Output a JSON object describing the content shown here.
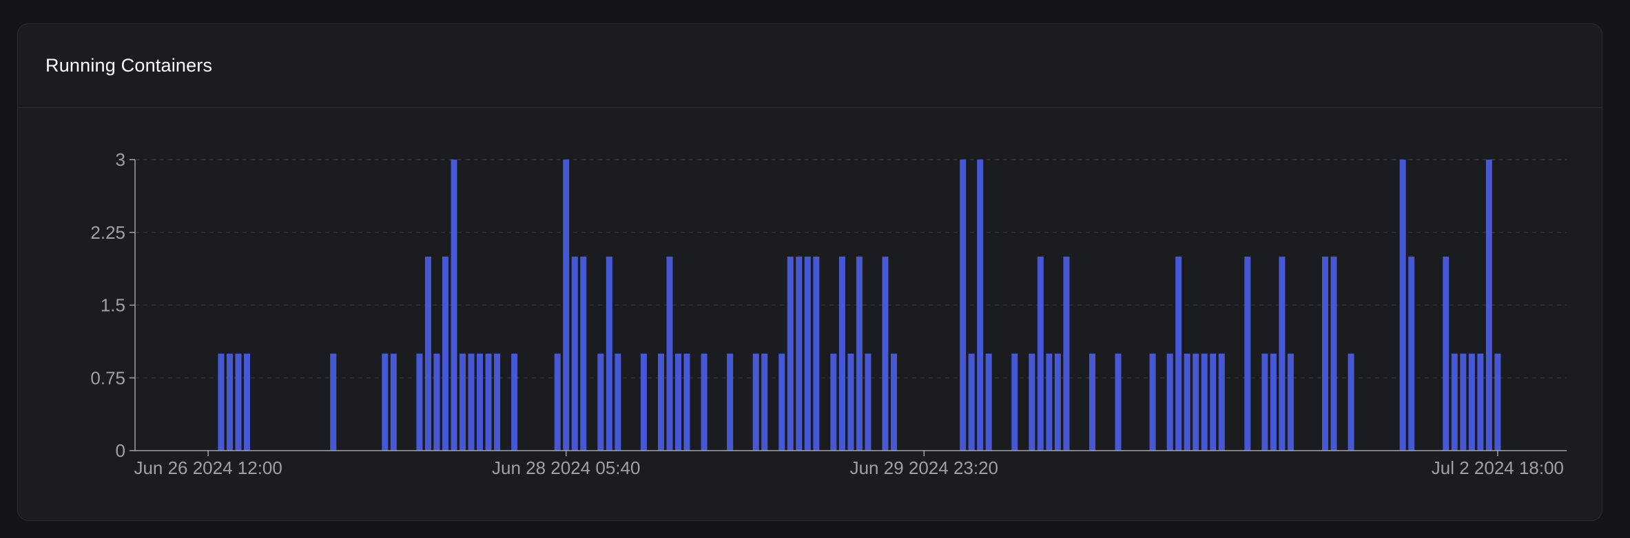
{
  "card": {
    "title": "Running Containers"
  },
  "colors": {
    "bar": "#4658d3",
    "axis": "#9ea1a8",
    "grid": "#2e3036",
    "background": "#1b1c20"
  },
  "chart_data": {
    "type": "bar",
    "title": "Running Containers",
    "xlabel": "",
    "ylabel": "",
    "ylim": [
      0,
      3
    ],
    "yticks": [
      {
        "value": 0,
        "label": "0"
      },
      {
        "value": 0.75,
        "label": "0.75"
      },
      {
        "value": 1.5,
        "label": "1.5"
      },
      {
        "value": 2.25,
        "label": "2.25"
      },
      {
        "value": 3,
        "label": "3"
      }
    ],
    "xticks": [
      {
        "label": "Jun 26 2024 12:00",
        "slot": 8
      },
      {
        "label": "Jun 28 2024 05:40",
        "slot": 49.5
      },
      {
        "label": "Jun 29 2024 23:20",
        "slot": 91
      },
      {
        "label": "Jul 2 2024 18:00",
        "slot": 157.5
      }
    ],
    "grid": true,
    "legend": "none",
    "bin_count": 166,
    "bins": [
      [
        9,
        1
      ],
      [
        10,
        1
      ],
      [
        11,
        1
      ],
      [
        12,
        1
      ],
      [
        22,
        1
      ],
      [
        28,
        1
      ],
      [
        29,
        1
      ],
      [
        32,
        1
      ],
      [
        33,
        2
      ],
      [
        34,
        1
      ],
      [
        35,
        2
      ],
      [
        36,
        3
      ],
      [
        37,
        1
      ],
      [
        38,
        1
      ],
      [
        39,
        1
      ],
      [
        40,
        1
      ],
      [
        41,
        1
      ],
      [
        43,
        1
      ],
      [
        48,
        1
      ],
      [
        49,
        3
      ],
      [
        50,
        2
      ],
      [
        51,
        2
      ],
      [
        53,
        1
      ],
      [
        54,
        2
      ],
      [
        55,
        1
      ],
      [
        58,
        1
      ],
      [
        60,
        1
      ],
      [
        61,
        2
      ],
      [
        62,
        1
      ],
      [
        63,
        1
      ],
      [
        65,
        1
      ],
      [
        68,
        1
      ],
      [
        71,
        1
      ],
      [
        72,
        1
      ],
      [
        74,
        1
      ],
      [
        75,
        2
      ],
      [
        76,
        2
      ],
      [
        77,
        2
      ],
      [
        78,
        2
      ],
      [
        80,
        1
      ],
      [
        81,
        2
      ],
      [
        82,
        1
      ],
      [
        83,
        2
      ],
      [
        84,
        1
      ],
      [
        86,
        2
      ],
      [
        87,
        1
      ],
      [
        95,
        3
      ],
      [
        96,
        1
      ],
      [
        97,
        3
      ],
      [
        98,
        1
      ],
      [
        101,
        1
      ],
      [
        103,
        1
      ],
      [
        104,
        2
      ],
      [
        105,
        1
      ],
      [
        106,
        1
      ],
      [
        107,
        2
      ],
      [
        110,
        1
      ],
      [
        113,
        1
      ],
      [
        117,
        1
      ],
      [
        119,
        1
      ],
      [
        120,
        2
      ],
      [
        121,
        1
      ],
      [
        122,
        1
      ],
      [
        123,
        1
      ],
      [
        124,
        1
      ],
      [
        125,
        1
      ],
      [
        128,
        2
      ],
      [
        130,
        1
      ],
      [
        131,
        1
      ],
      [
        132,
        2
      ],
      [
        133,
        1
      ],
      [
        137,
        2
      ],
      [
        138,
        2
      ],
      [
        140,
        1
      ],
      [
        146,
        3
      ],
      [
        147,
        2
      ],
      [
        151,
        2
      ],
      [
        152,
        1
      ],
      [
        153,
        1
      ],
      [
        154,
        1
      ],
      [
        155,
        1
      ],
      [
        156,
        3
      ],
      [
        157,
        1
      ]
    ]
  }
}
